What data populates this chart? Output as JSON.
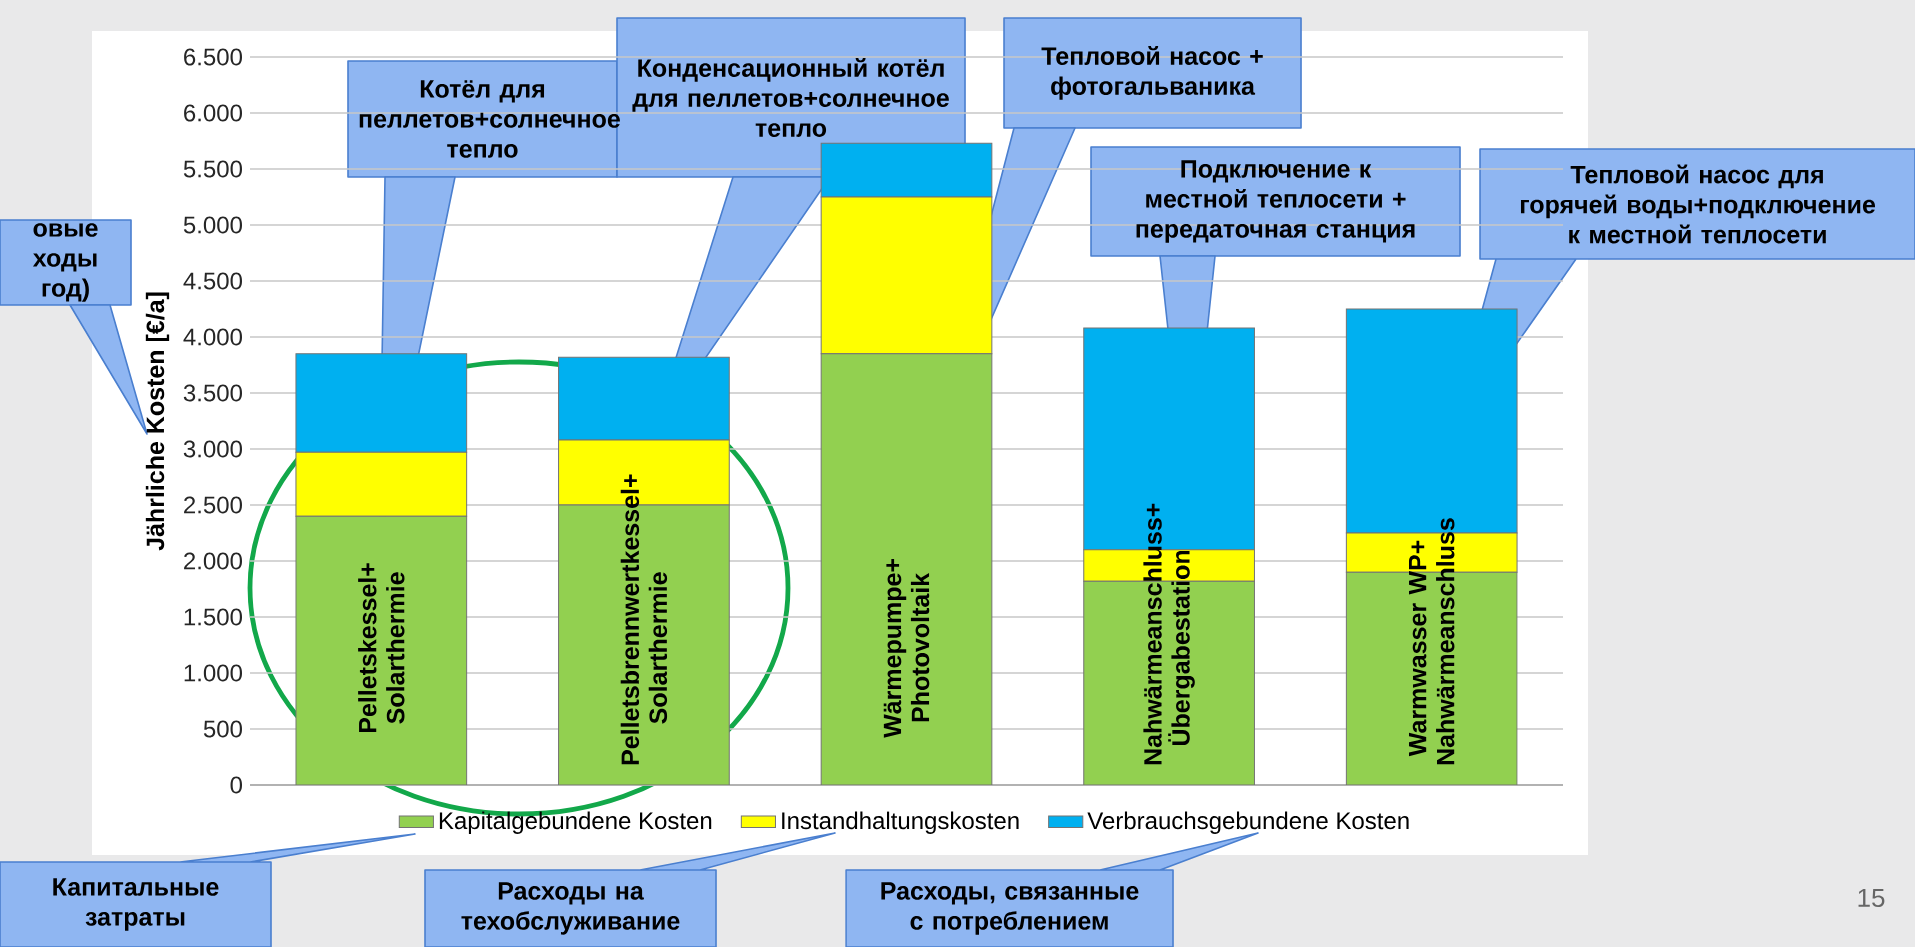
{
  "chart_data": {
    "type": "bar",
    "stacked": true,
    "ylabel": "Jährliche Kosten [€/a]",
    "categories": [
      "Pelletskessel+ Solarthermie",
      "Pelletsbrennwertkessel+ Solarthermie",
      "Wärmepumpe+ Photovoltaik",
      "Nahwärmeanschluss+ Übergabestation",
      "Warmwasser WP+ Nahwärmeanschluss"
    ],
    "series": [
      {
        "name": "Kapitalgebundene Kosten",
        "color": "#92d050",
        "values": [
          2400,
          2500,
          3850,
          1820,
          1900
        ]
      },
      {
        "name": "Instandhaltungskosten",
        "color": "#ffff00",
        "values": [
          570,
          580,
          1400,
          280,
          350
        ]
      },
      {
        "name": "Verbrauchsgebundene Kosten",
        "color": "#00b0f0",
        "values": [
          880,
          740,
          480,
          1980,
          2000
        ]
      }
    ],
    "ylim": [
      0,
      6500
    ],
    "yticks": [
      0,
      500,
      {
        "value": 1000,
        "label": "1.000"
      },
      {
        "value": 1500,
        "label": "1.500"
      },
      {
        "value": 2000,
        "label": "2.000"
      },
      {
        "value": 2500,
        "label": "2.500"
      },
      {
        "value": 3000,
        "label": "3.000"
      },
      {
        "value": 3500,
        "label": "3.500"
      },
      {
        "value": 4000,
        "label": "4.000"
      },
      {
        "value": 4500,
        "label": "4.500"
      },
      {
        "value": 5000,
        "label": "5.000"
      },
      {
        "value": 5500,
        "label": "5.500"
      },
      {
        "value": 6000,
        "label": "6.000"
      },
      {
        "value": 6500,
        "label": "6.500"
      }
    ],
    "grid": "y",
    "legend": "bottom",
    "annotations": [
      "Котёл для пеллетов+солнечное тепло",
      "Конденсационный котёл для пеллетов+солнечное тепло",
      "Тепловой насос + фотогальваника",
      "Подключение к местной теплосети + передаточная станция",
      "Тепловой насос для горячей воды+подключение к местной теплосети",
      "овые ходы год)",
      "Капитальные затраты",
      "Расходы на техобслуживание",
      "Расходы, связанные с потреблением",
      "15"
    ]
  }
}
